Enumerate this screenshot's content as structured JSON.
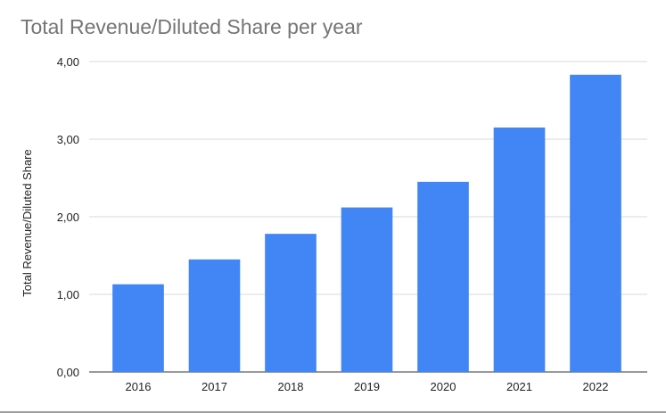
{
  "chart_data": {
    "type": "bar",
    "title": "Total Revenue/Diluted Share per year",
    "xlabel": "",
    "ylabel": "Total Revenue/Diluted Share",
    "categories": [
      "2016",
      "2017",
      "2018",
      "2019",
      "2020",
      "2021",
      "2022"
    ],
    "series": [
      {
        "values": [
          1.13,
          1.45,
          1.78,
          2.12,
          2.45,
          3.15,
          3.83
        ]
      }
    ],
    "ylim": [
      0,
      4
    ],
    "yticks": [
      0,
      1,
      2,
      3,
      4
    ],
    "ytick_labels": [
      "0,00",
      "1,00",
      "2,00",
      "3,00",
      "4,00"
    ],
    "bar_color": "#4285f4",
    "grid": true,
    "legend": "none"
  }
}
